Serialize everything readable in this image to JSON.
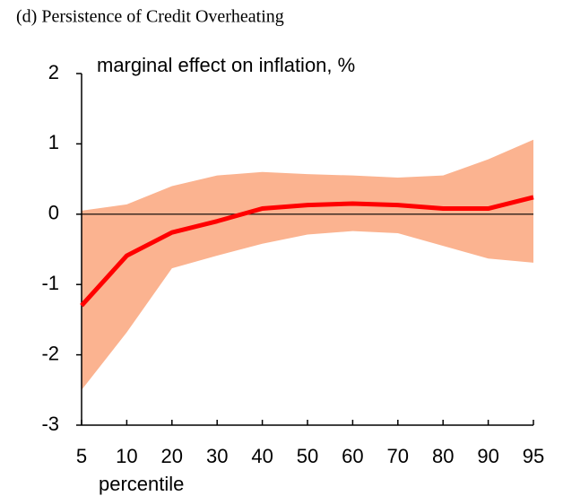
{
  "chart_data": {
    "type": "line",
    "title": "(d) Persistence of Credit Overheating",
    "y_label": "marginal effect on inflation, %",
    "x_label": "percentile",
    "categories": [
      "5",
      "10",
      "20",
      "30",
      "40",
      "50",
      "60",
      "70",
      "80",
      "90",
      "95"
    ],
    "values": [
      -1.3,
      -0.59,
      -0.26,
      -0.1,
      0.08,
      0.13,
      0.15,
      0.13,
      0.08,
      0.08,
      0.24
    ],
    "upper": [
      0.05,
      0.14,
      0.4,
      0.55,
      0.6,
      0.57,
      0.55,
      0.52,
      0.55,
      0.78,
      1.06
    ],
    "lower": [
      -2.5,
      -1.68,
      -0.77,
      -0.59,
      -0.42,
      -0.29,
      -0.24,
      -0.27,
      -0.45,
      -0.63,
      -0.69
    ],
    "color": "#ff0000",
    "band_color": "#fbb390",
    "ylim": [
      -3,
      2
    ],
    "yticks": [
      -3,
      -2,
      -1,
      0,
      1,
      2
    ]
  }
}
